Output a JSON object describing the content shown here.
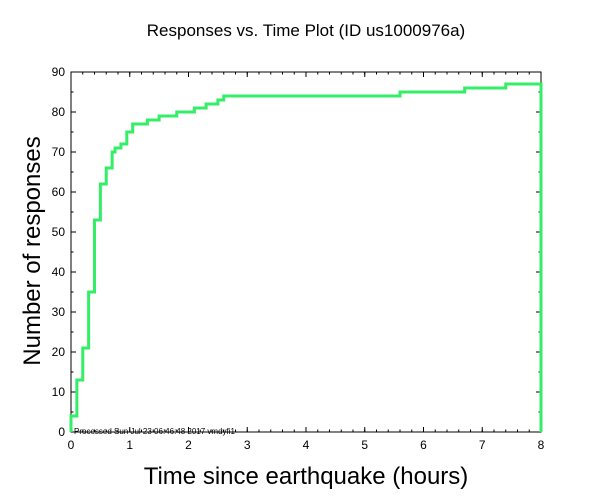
{
  "chart_data": {
    "type": "line",
    "title": "Responses vs. Time Plot (ID us1000976a)",
    "xlabel": "Time since earthquake (hours)",
    "ylabel": "Number of responses",
    "xlim": [
      0,
      8
    ],
    "ylim": [
      0,
      90
    ],
    "x_ticks": [
      "0",
      "1",
      "2",
      "3",
      "4",
      "5",
      "6",
      "7",
      "8"
    ],
    "y_ticks": [
      "0",
      "10",
      "20",
      "30",
      "40",
      "50",
      "60",
      "70",
      "80",
      "90"
    ],
    "grid": false,
    "line_color": "#33ee66",
    "step": true,
    "footnote": "Processed Sun Jul 23 06:46:48 2017 vmdyfi1",
    "series": [
      {
        "x": [
          0,
          0.1,
          0.2,
          0.3,
          0.4,
          0.5,
          0.6,
          0.7,
          0.75,
          0.85,
          0.95,
          1.05,
          1.3,
          1.5,
          1.8,
          2.1,
          2.3,
          2.5,
          2.6,
          5.6,
          6.7,
          7.4,
          8.0
        ],
        "y": [
          4,
          13,
          21,
          35,
          53,
          62,
          66,
          70,
          71,
          72,
          75,
          77,
          78,
          79,
          80,
          81,
          82,
          83,
          84,
          85,
          86,
          87,
          87
        ]
      }
    ]
  }
}
